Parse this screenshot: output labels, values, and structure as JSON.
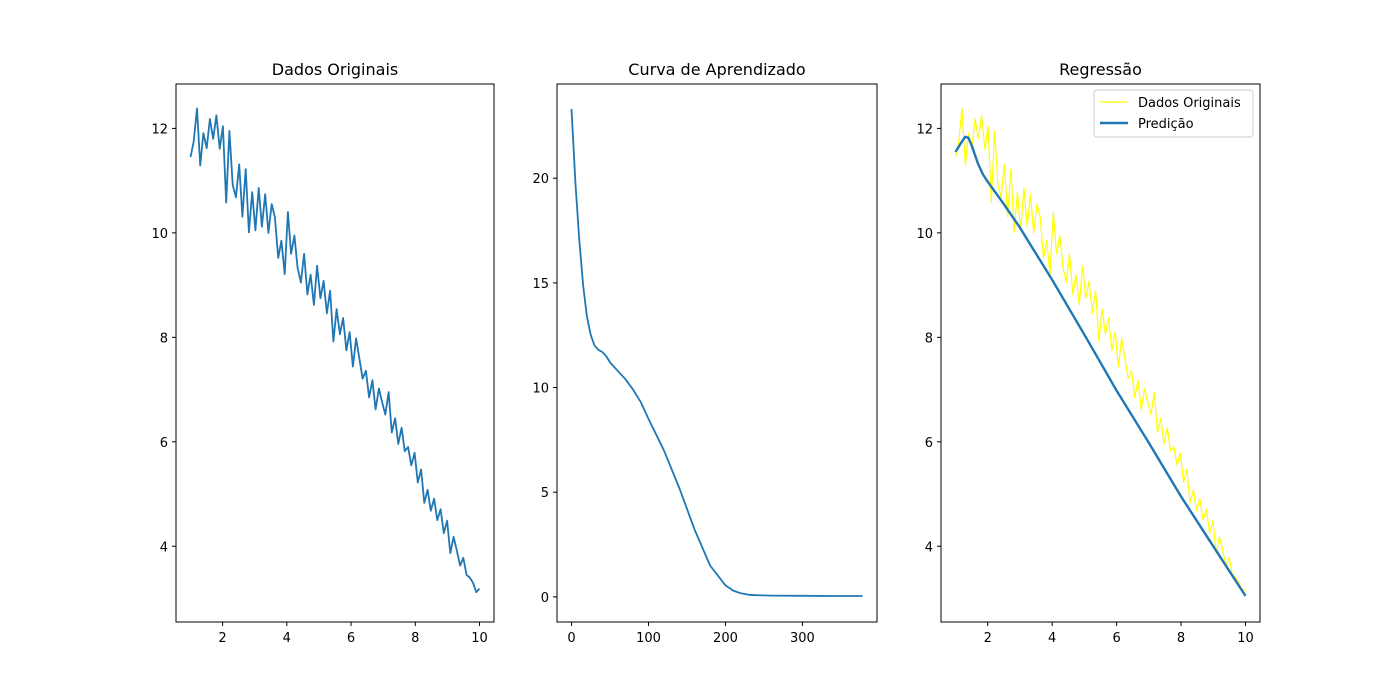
{
  "chart_data": [
    {
      "type": "line",
      "title": "Dados Originais",
      "xlabel": "",
      "ylabel": "",
      "xlim": [
        0.55,
        10.45
      ],
      "ylim": [
        2.55,
        12.85
      ],
      "xticks": [
        2,
        4,
        6,
        8,
        10
      ],
      "yticks": [
        4,
        6,
        8,
        10,
        12
      ],
      "grid": false,
      "series": [
        {
          "color": "#1f77b4",
          "x_start": 1,
          "x_end": 10,
          "values": [
            11.45,
            11.75,
            12.38,
            11.29,
            11.91,
            11.62,
            12.18,
            11.8,
            12.25,
            11.61,
            12.04,
            10.58,
            11.95,
            10.92,
            10.68,
            11.31,
            10.31,
            11.22,
            10.01,
            10.78,
            10.05,
            10.86,
            10.12,
            10.74,
            10.0,
            10.55,
            10.3,
            9.52,
            9.85,
            9.21,
            10.4,
            9.6,
            9.95,
            9.33,
            9.05,
            9.6,
            8.82,
            9.2,
            8.62,
            9.37,
            8.75,
            9.08,
            8.46,
            8.89,
            7.92,
            8.54,
            8.06,
            8.37,
            7.75,
            8.1,
            7.44,
            7.98,
            7.59,
            7.21,
            7.36,
            6.85,
            7.18,
            6.62,
            7.02,
            6.76,
            6.52,
            6.95,
            6.18,
            6.45,
            5.96,
            6.27,
            5.82,
            5.9,
            5.55,
            5.79,
            5.22,
            5.47,
            4.83,
            5.08,
            4.68,
            4.91,
            4.5,
            4.71,
            4.25,
            4.49,
            3.87,
            4.18,
            3.92,
            3.63,
            3.78,
            3.45,
            3.4,
            3.3,
            3.12,
            3.19
          ]
        }
      ]
    },
    {
      "type": "line",
      "title": "Curva de Aprendizado",
      "xlabel": "",
      "ylabel": "",
      "xlim": [
        -18.9,
        396.9
      ],
      "ylim": [
        -1.2,
        24.5
      ],
      "xticks": [
        0,
        100,
        200,
        300
      ],
      "yticks": [
        0,
        5,
        10,
        15,
        20
      ],
      "grid": false,
      "series": [
        {
          "color": "#1f77b4",
          "x": [
            0,
            5,
            10,
            15,
            20,
            25,
            30,
            35,
            40,
            45,
            50,
            60,
            70,
            80,
            90,
            100,
            120,
            140,
            160,
            180,
            200,
            210,
            220,
            230,
            240,
            260,
            300,
            340,
            378
          ],
          "y": [
            23.3,
            19.8,
            17.1,
            14.9,
            13.4,
            12.5,
            12.0,
            11.8,
            11.7,
            11.5,
            11.2,
            10.8,
            10.4,
            9.9,
            9.3,
            8.5,
            7.0,
            5.2,
            3.2,
            1.5,
            0.55,
            0.3,
            0.17,
            0.1,
            0.08,
            0.06,
            0.05,
            0.04,
            0.04
          ]
        }
      ]
    },
    {
      "type": "line",
      "title": "Regressão",
      "xlabel": "",
      "ylabel": "",
      "xlim": [
        0.55,
        10.45
      ],
      "ylim": [
        2.55,
        12.85
      ],
      "xticks": [
        2,
        4,
        6,
        8,
        10
      ],
      "yticks": [
        4,
        6,
        8,
        10,
        12
      ],
      "grid": false,
      "legend": "top-right",
      "series": [
        {
          "name": "Dados Originais",
          "color": "#ffff00",
          "x_start": 1,
          "x_end": 10,
          "values": [
            11.45,
            11.75,
            12.38,
            11.29,
            11.91,
            11.62,
            12.18,
            11.8,
            12.25,
            11.61,
            12.04,
            10.58,
            11.95,
            10.92,
            10.68,
            11.31,
            10.31,
            11.22,
            10.01,
            10.78,
            10.05,
            10.86,
            10.12,
            10.74,
            10.0,
            10.55,
            10.3,
            9.52,
            9.85,
            9.21,
            10.4,
            9.6,
            9.95,
            9.33,
            9.05,
            9.6,
            8.82,
            9.2,
            8.62,
            9.37,
            8.75,
            9.08,
            8.46,
            8.89,
            7.92,
            8.54,
            8.06,
            8.37,
            7.75,
            8.1,
            7.44,
            7.98,
            7.59,
            7.21,
            7.36,
            6.85,
            7.18,
            6.62,
            7.02,
            6.76,
            6.52,
            6.95,
            6.18,
            6.45,
            5.96,
            6.27,
            5.82,
            5.9,
            5.55,
            5.79,
            5.22,
            5.47,
            4.83,
            5.08,
            4.68,
            4.91,
            4.5,
            4.71,
            4.25,
            4.49,
            3.87,
            4.18,
            3.92,
            3.63,
            3.78,
            3.45,
            3.4,
            3.3,
            3.12,
            3.19
          ]
        },
        {
          "name": "Predição",
          "color": "#1f77b4",
          "x": [
            1.0,
            1.15,
            1.3,
            1.4,
            1.5,
            1.6,
            1.7,
            1.85,
            2.0,
            2.5,
            3.0,
            4.0,
            5.0,
            6.0,
            7.0,
            8.0,
            9.0,
            10.0
          ],
          "y": [
            11.55,
            11.7,
            11.84,
            11.82,
            11.68,
            11.5,
            11.32,
            11.12,
            10.98,
            10.55,
            10.1,
            9.1,
            8.05,
            6.98,
            5.98,
            4.95,
            4.0,
            3.05
          ]
        }
      ]
    }
  ]
}
